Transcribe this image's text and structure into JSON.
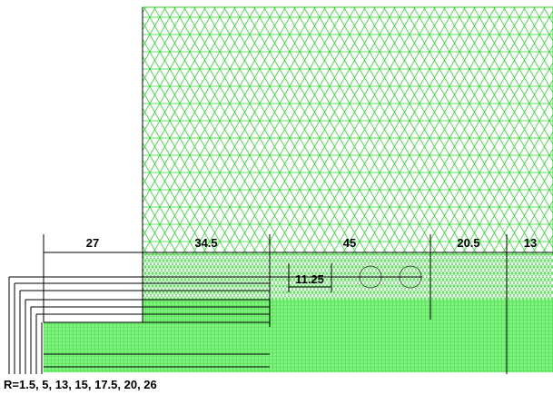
{
  "dimensions": {
    "d1": "27",
    "d2": "34.5",
    "d3": "45",
    "d4": "20.5",
    "d5": "13",
    "inner": "11.25"
  },
  "radii_label": "R=1.5, 5, 13, 15, 17.5, 20, 26"
}
